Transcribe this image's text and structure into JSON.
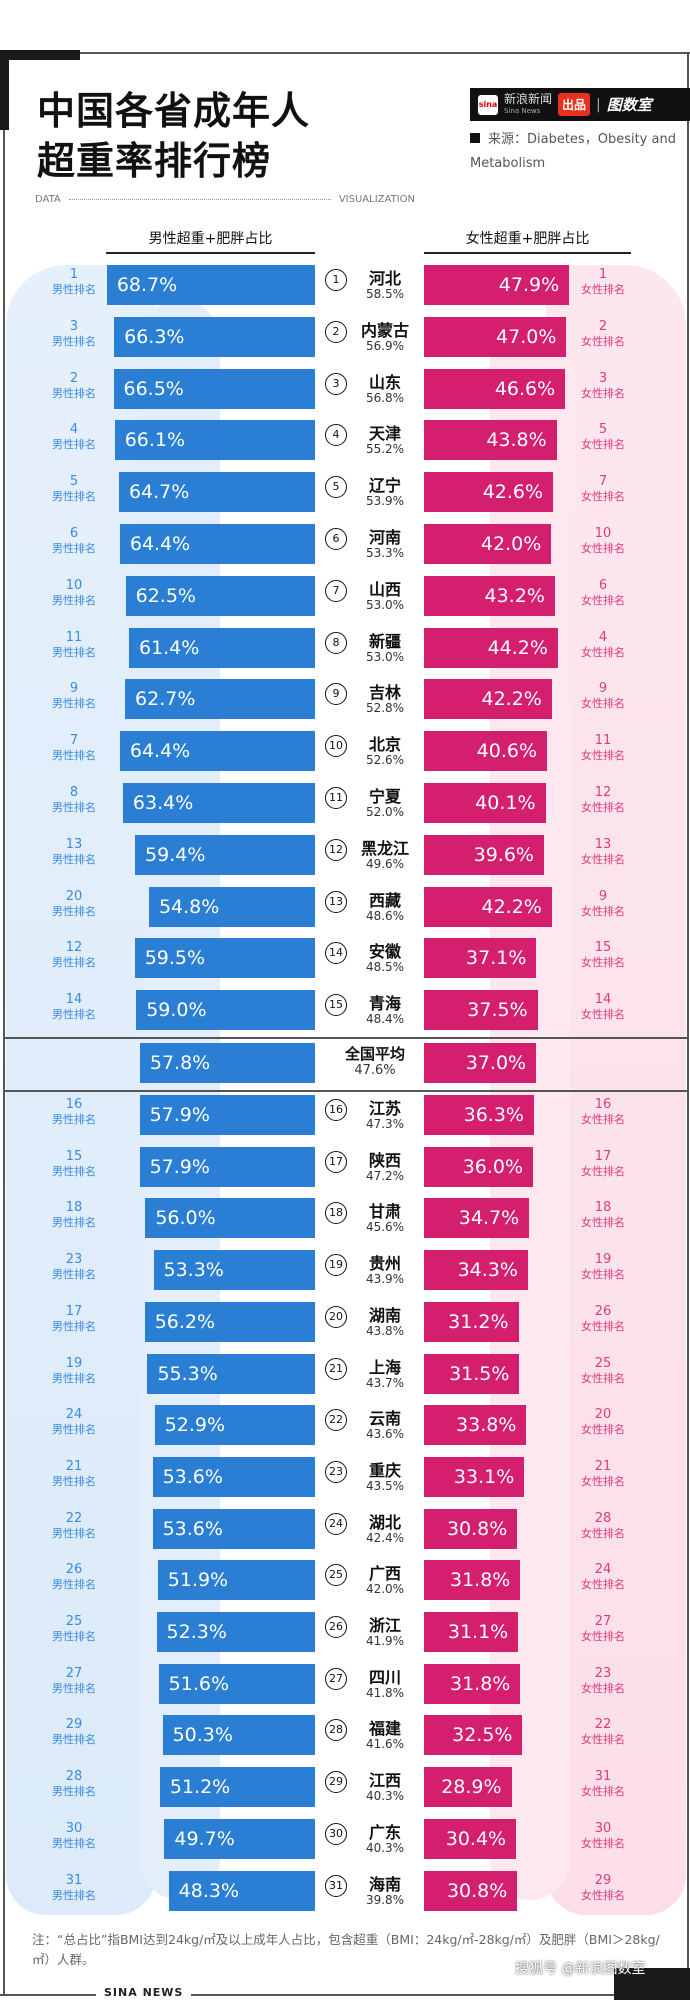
{
  "header": {
    "title_line1": "中国各省成年人",
    "title_line2": "超重率排行榜",
    "brand_cn": "新浪新闻",
    "brand_en": "Sina News",
    "brand_badge": "出品",
    "brand_separator": "|",
    "studio": "图数室",
    "source": "来源：Diabetes，Obesity and Metabolism",
    "data_label": "DATA",
    "viz_label": "VISUALIZATION"
  },
  "colors": {
    "male": "#2a7fd4",
    "female": "#d41f6e",
    "male_rank": "#3a8be0",
    "female_rank": "#e03a7a"
  },
  "chart_data": {
    "type": "bar",
    "title": "中国各省成年人超重率排行榜",
    "male_header": "男性超重+肥胖占比",
    "female_header": "女性超重+肥胖占比",
    "male_rank_label": "男性排名",
    "female_rank_label": "女性排名",
    "unit": "%",
    "rows": [
      {
        "rank": 1,
        "province": "河北",
        "total": "58.5%",
        "male": 68.7,
        "male_rank": 1,
        "female": 47.9,
        "female_rank": 1
      },
      {
        "rank": 2,
        "province": "内蒙古",
        "total": "56.9%",
        "male": 66.3,
        "male_rank": 3,
        "female": 47.0,
        "female_rank": 2
      },
      {
        "rank": 3,
        "province": "山东",
        "total": "56.8%",
        "male": 66.5,
        "male_rank": 2,
        "female": 46.6,
        "female_rank": 3
      },
      {
        "rank": 4,
        "province": "天津",
        "total": "55.2%",
        "male": 66.1,
        "male_rank": 4,
        "female": 43.8,
        "female_rank": 5
      },
      {
        "rank": 5,
        "province": "辽宁",
        "total": "53.9%",
        "male": 64.7,
        "male_rank": 5,
        "female": 42.6,
        "female_rank": 7
      },
      {
        "rank": 6,
        "province": "河南",
        "total": "53.3%",
        "male": 64.4,
        "male_rank": 6,
        "female": 42.0,
        "female_rank": 10
      },
      {
        "rank": 7,
        "province": "山西",
        "total": "53.0%",
        "male": 62.5,
        "male_rank": 10,
        "female": 43.2,
        "female_rank": 6
      },
      {
        "rank": 8,
        "province": "新疆",
        "total": "53.0%",
        "male": 61.4,
        "male_rank": 11,
        "female": 44.2,
        "female_rank": 4
      },
      {
        "rank": 9,
        "province": "吉林",
        "total": "52.8%",
        "male": 62.7,
        "male_rank": 9,
        "female": 42.2,
        "female_rank": 9
      },
      {
        "rank": 10,
        "province": "北京",
        "total": "52.6%",
        "male": 64.4,
        "male_rank": 7,
        "female": 40.6,
        "female_rank": 11
      },
      {
        "rank": 11,
        "province": "宁夏",
        "total": "52.0%",
        "male": 63.4,
        "male_rank": 8,
        "female": 40.1,
        "female_rank": 12
      },
      {
        "rank": 12,
        "province": "黑龙江",
        "total": "49.6%",
        "male": 59.4,
        "male_rank": 13,
        "female": 39.6,
        "female_rank": 13
      },
      {
        "rank": 13,
        "province": "西藏",
        "total": "48.6%",
        "male": 54.8,
        "male_rank": 20,
        "female": 42.2,
        "female_rank": 9
      },
      {
        "rank": 14,
        "province": "安徽",
        "total": "48.5%",
        "male": 59.5,
        "male_rank": 12,
        "female": 37.1,
        "female_rank": 15
      },
      {
        "rank": 15,
        "province": "青海",
        "total": "48.4%",
        "male": 59.0,
        "male_rank": 14,
        "female": 37.5,
        "female_rank": 14
      },
      {
        "rank": 16,
        "province": "江苏",
        "total": "47.3%",
        "male": 57.9,
        "male_rank": 16,
        "female": 36.3,
        "female_rank": 16
      },
      {
        "rank": 17,
        "province": "陕西",
        "total": "47.2%",
        "male": 57.9,
        "male_rank": 15,
        "female": 36.0,
        "female_rank": 17
      },
      {
        "rank": 18,
        "province": "甘肃",
        "total": "45.6%",
        "male": 56.0,
        "male_rank": 18,
        "female": 34.7,
        "female_rank": 18
      },
      {
        "rank": 19,
        "province": "贵州",
        "total": "43.9%",
        "male": 53.3,
        "male_rank": 23,
        "female": 34.3,
        "female_rank": 19
      },
      {
        "rank": 20,
        "province": "湖南",
        "total": "43.8%",
        "male": 56.2,
        "male_rank": 17,
        "female": 31.2,
        "female_rank": 26
      },
      {
        "rank": 21,
        "province": "上海",
        "total": "43.7%",
        "male": 55.3,
        "male_rank": 19,
        "female": 31.5,
        "female_rank": 25
      },
      {
        "rank": 22,
        "province": "云南",
        "total": "43.6%",
        "male": 52.9,
        "male_rank": 24,
        "female": 33.8,
        "female_rank": 20
      },
      {
        "rank": 23,
        "province": "重庆",
        "total": "43.5%",
        "male": 53.6,
        "male_rank": 21,
        "female": 33.1,
        "female_rank": 21
      },
      {
        "rank": 24,
        "province": "湖北",
        "total": "42.4%",
        "male": 53.6,
        "male_rank": 22,
        "female": 30.8,
        "female_rank": 28
      },
      {
        "rank": 25,
        "province": "广西",
        "total": "42.0%",
        "male": 51.9,
        "male_rank": 26,
        "female": 31.8,
        "female_rank": 24
      },
      {
        "rank": 26,
        "province": "浙江",
        "total": "41.9%",
        "male": 52.3,
        "male_rank": 25,
        "female": 31.1,
        "female_rank": 27
      },
      {
        "rank": 27,
        "province": "四川",
        "total": "41.8%",
        "male": 51.6,
        "male_rank": 27,
        "female": 31.8,
        "female_rank": 23
      },
      {
        "rank": 28,
        "province": "福建",
        "total": "41.6%",
        "male": 50.3,
        "male_rank": 29,
        "female": 32.5,
        "female_rank": 22
      },
      {
        "rank": 29,
        "province": "江西",
        "total": "40.3%",
        "male": 51.2,
        "male_rank": 28,
        "female": 28.9,
        "female_rank": 31
      },
      {
        "rank": 30,
        "province": "广东",
        "total": "40.3%",
        "male": 49.7,
        "male_rank": 30,
        "female": 30.4,
        "female_rank": 30
      },
      {
        "rank": 31,
        "province": "海南",
        "total": "39.8%",
        "male": 48.3,
        "male_rank": 31,
        "female": 30.8,
        "female_rank": 29
      }
    ],
    "national_average": {
      "label": "全国平均",
      "total": "47.6%",
      "male": 57.8,
      "female": 37.0
    }
  },
  "footer": {
    "note": "注：“总占比”指BMI达到24kg/㎡及以上成年人占比，包含超重（BMI：24kg/㎡-28kg/㎡）及肥胖（BMI＞28kg/㎡）人群。",
    "credit": "搜狐号 @新浪图数室",
    "sina_news": "SINA NEWS"
  }
}
